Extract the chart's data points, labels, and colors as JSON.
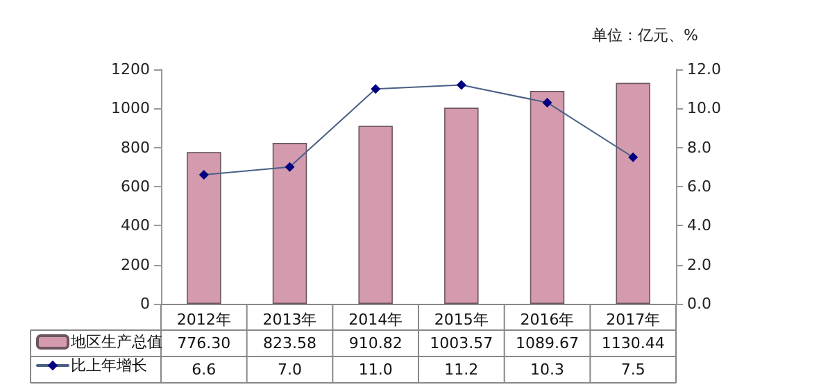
{
  "chart_data": {
    "type": "bar",
    "categories": [
      "2012年",
      "2013年",
      "2014年",
      "2015年",
      "2016年",
      "2017年"
    ],
    "series": [
      {
        "name": "地区生产总值",
        "color": "#d49aae",
        "values": [
          776.3,
          823.58,
          910.82,
          1003.57,
          1089.67,
          1130.44
        ],
        "value_labels": [
          "776.30",
          "823.58",
          "910.82",
          "1003.57",
          "1089.67",
          "1130.44"
        ]
      },
      {
        "type": "line",
        "name": "比上年增长",
        "color": "#000080",
        "axis": "y2",
        "marker": "diamond",
        "values": [
          6.6,
          7.0,
          11.0,
          11.2,
          10.3,
          7.5
        ],
        "value_labels": [
          "6.6",
          "7.0",
          "11.0",
          "11.2",
          "10.3",
          "7.5"
        ]
      }
    ],
    "ylim": [
      0,
      1200
    ],
    "yticks": [
      0,
      200,
      400,
      600,
      800,
      1000,
      1200
    ],
    "y2lim": [
      0,
      12
    ],
    "y2ticks": [
      {
        "value": 0,
        "label": "0.0"
      },
      {
        "value": 2,
        "label": "2.0"
      },
      {
        "value": 4,
        "label": "4.0"
      },
      {
        "value": 6,
        "label": "6.0"
      },
      {
        "value": 8,
        "label": "8.0"
      },
      {
        "value": 10,
        "label": "10.0"
      },
      {
        "value": 12,
        "label": "12.0"
      }
    ],
    "annotations": [
      "单位：亿元、%"
    ],
    "legend": "bottom left",
    "grid": false
  }
}
